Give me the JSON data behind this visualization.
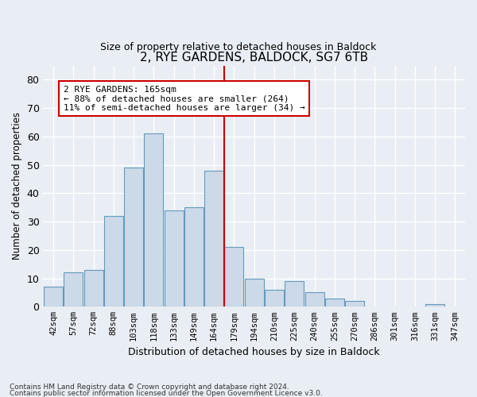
{
  "title": "2, RYE GARDENS, BALDOCK, SG7 6TB",
  "subtitle": "Size of property relative to detached houses in Baldock",
  "xlabel": "Distribution of detached houses by size in Baldock",
  "ylabel": "Number of detached properties",
  "bin_labels": [
    "42sqm",
    "57sqm",
    "72sqm",
    "88sqm",
    "103sqm",
    "118sqm",
    "133sqm",
    "149sqm",
    "164sqm",
    "179sqm",
    "194sqm",
    "210sqm",
    "225sqm",
    "240sqm",
    "255sqm",
    "270sqm",
    "286sqm",
    "301sqm",
    "316sqm",
    "331sqm",
    "347sqm"
  ],
  "bar_heights": [
    7,
    12,
    13,
    32,
    49,
    61,
    34,
    35,
    48,
    21,
    10,
    6,
    9,
    5,
    3,
    2,
    0,
    0,
    0,
    1,
    0
  ],
  "bar_color": "#ccd9e8",
  "bar_edge_color": "#6699bb",
  "vline_color": "#cc0000",
  "annotation_text": "2 RYE GARDENS: 165sqm\n← 88% of detached houses are smaller (264)\n11% of semi-detached houses are larger (34) →",
  "annotation_box_color": "#ffffff",
  "annotation_box_edge": "#cc0000",
  "ylim": [
    0,
    85
  ],
  "yticks": [
    0,
    10,
    20,
    30,
    40,
    50,
    60,
    70,
    80
  ],
  "footnote1": "Contains HM Land Registry data © Crown copyright and database right 2024.",
  "footnote2": "Contains public sector information licensed under the Open Government Licence v3.0.",
  "background_color": "#e8eef4",
  "grid_color": "#ffffff"
}
